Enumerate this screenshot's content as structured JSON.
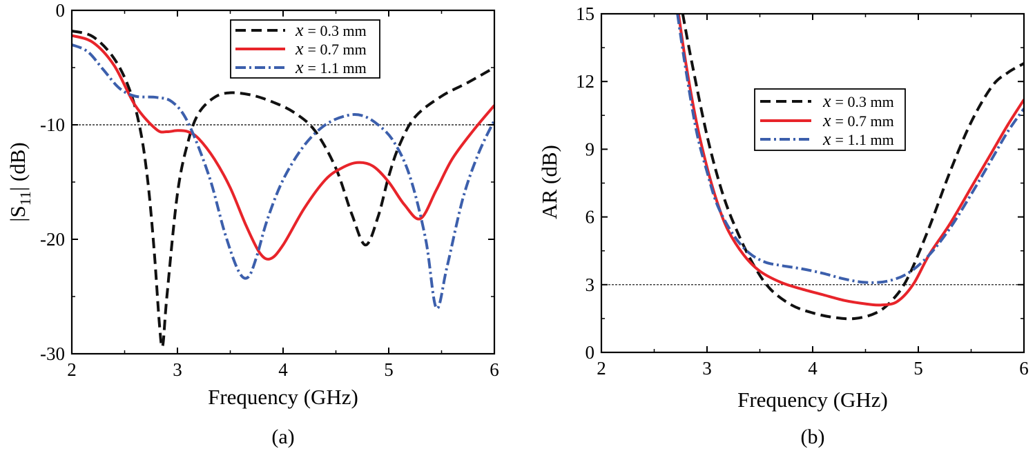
{
  "charts": [
    {
      "id": "a",
      "panel_label": "(a)",
      "xlabel": "Frequency (GHz)",
      "ylabel_main": "|S",
      "ylabel_sub": "11",
      "ylabel_tail": "| (dB)"
    },
    {
      "id": "b",
      "panel_label": "(b)",
      "xlabel": "Frequency (GHz)",
      "ylabel_main": "AR (dB)",
      "ylabel_sub": "",
      "ylabel_tail": ""
    }
  ],
  "chart_data": [
    {
      "type": "line",
      "panel": "(a)",
      "title": "",
      "xlabel": "Frequency (GHz)",
      "ylabel": "|S11| (dB)",
      "xlim": [
        2,
        6
      ],
      "ylim": [
        -30,
        0
      ],
      "xticks": [
        2,
        3,
        4,
        5,
        6
      ],
      "yticks": [
        -30,
        -20,
        -10,
        0
      ],
      "reference_line": {
        "y": -10,
        "style": "dotted"
      },
      "legend_position": "top-center",
      "series": [
        {
          "name": "x = 0.3 mm",
          "var": "x",
          "value_text": "= 0.3 mm",
          "color": "#111111",
          "dash": "dashed",
          "x": [
            2.0,
            2.2,
            2.4,
            2.55,
            2.65,
            2.72,
            2.78,
            2.83,
            2.86,
            2.9,
            3.0,
            3.1,
            3.2,
            3.35,
            3.5,
            3.7,
            3.9,
            4.1,
            4.3,
            4.5,
            4.65,
            4.78,
            4.9,
            5.0,
            5.1,
            5.25,
            5.5,
            5.75,
            6.0
          ],
          "y": [
            -1.8,
            -2.3,
            -4.2,
            -7.0,
            -10.5,
            -15.0,
            -21.0,
            -27.5,
            -29.3,
            -25.0,
            -16.0,
            -11.5,
            -9.0,
            -7.6,
            -7.2,
            -7.4,
            -8.0,
            -8.9,
            -10.5,
            -13.8,
            -17.8,
            -20.5,
            -18.0,
            -14.5,
            -11.8,
            -9.3,
            -7.5,
            -6.3,
            -5.0
          ]
        },
        {
          "name": "x = 0.7 mm",
          "var": "x",
          "value_text": "= 0.7 mm",
          "color": "#e8242a",
          "dash": "solid",
          "x": [
            2.0,
            2.2,
            2.4,
            2.6,
            2.8,
            2.9,
            3.0,
            3.1,
            3.2,
            3.35,
            3.5,
            3.65,
            3.78,
            3.88,
            4.0,
            4.2,
            4.4,
            4.55,
            4.7,
            4.85,
            5.0,
            5.15,
            5.3,
            5.45,
            5.6,
            5.8,
            6.0
          ],
          "y": [
            -2.2,
            -2.8,
            -4.8,
            -8.3,
            -10.4,
            -10.6,
            -10.5,
            -10.6,
            -11.2,
            -13.0,
            -15.5,
            -18.8,
            -21.2,
            -21.7,
            -20.5,
            -17.3,
            -14.8,
            -13.8,
            -13.3,
            -13.6,
            -15.0,
            -17.0,
            -18.2,
            -15.7,
            -13.0,
            -10.5,
            -8.3
          ]
        },
        {
          "name": "x = 1.1 mm",
          "var": "x",
          "value_text": "= 1.1 mm",
          "color": "#3c5fac",
          "dash": "dashdot",
          "x": [
            2.0,
            2.15,
            2.3,
            2.45,
            2.6,
            2.8,
            2.95,
            3.1,
            3.3,
            3.45,
            3.58,
            3.67,
            3.75,
            3.85,
            4.0,
            4.2,
            4.4,
            4.6,
            4.75,
            4.9,
            5.05,
            5.2,
            5.35,
            5.45,
            5.55,
            5.7,
            5.85,
            6.0
          ],
          "y": [
            -3.0,
            -3.6,
            -5.2,
            -6.8,
            -7.5,
            -7.6,
            -8.0,
            -9.8,
            -14.5,
            -19.5,
            -22.8,
            -23.3,
            -21.5,
            -18.3,
            -14.8,
            -11.8,
            -10.0,
            -9.2,
            -9.2,
            -10.0,
            -11.5,
            -14.5,
            -20.0,
            -26.0,
            -22.5,
            -16.5,
            -12.5,
            -9.6
          ]
        }
      ]
    },
    {
      "type": "line",
      "panel": "(b)",
      "title": "",
      "xlabel": "Frequency (GHz)",
      "ylabel": "AR (dB)",
      "xlim": [
        2,
        6
      ],
      "ylim": [
        0,
        15
      ],
      "xticks": [
        2,
        3,
        4,
        5,
        6
      ],
      "yticks": [
        0,
        3,
        6,
        9,
        12,
        15
      ],
      "reference_line": {
        "y": 3,
        "style": "dotted"
      },
      "legend_position": "upper-center",
      "series": [
        {
          "name": "x = 0.3 mm",
          "var": "x",
          "value_text": "= 0.3 mm",
          "color": "#111111",
          "dash": "dashed",
          "x": [
            2.77,
            2.85,
            3.0,
            3.15,
            3.3,
            3.45,
            3.6,
            3.8,
            4.0,
            4.2,
            4.4,
            4.6,
            4.75,
            4.9,
            5.1,
            5.3,
            5.5,
            5.7,
            5.85,
            6.0
          ],
          "y": [
            15.0,
            13.0,
            9.6,
            7.0,
            5.2,
            3.8,
            2.8,
            2.1,
            1.75,
            1.55,
            1.5,
            1.75,
            2.3,
            3.3,
            5.5,
            8.0,
            10.2,
            11.8,
            12.4,
            12.8
          ]
        },
        {
          "name": "x = 0.7 mm",
          "var": "x",
          "value_text": "= 0.7 mm",
          "color": "#e8242a",
          "dash": "solid",
          "x": [
            2.73,
            2.8,
            2.9,
            3.0,
            3.1,
            3.2,
            3.35,
            3.5,
            3.7,
            3.9,
            4.1,
            4.3,
            4.5,
            4.65,
            4.8,
            4.95,
            5.1,
            5.3,
            5.5,
            5.7,
            5.85,
            6.0
          ],
          "y": [
            15.0,
            12.8,
            10.2,
            8.2,
            6.6,
            5.4,
            4.3,
            3.6,
            3.1,
            2.8,
            2.55,
            2.3,
            2.15,
            2.1,
            2.25,
            3.0,
            4.3,
            5.7,
            7.3,
            8.9,
            10.1,
            11.2
          ]
        },
        {
          "name": "x = 1.1 mm",
          "var": "x",
          "value_text": "= 1.1 mm",
          "color": "#3c5fac",
          "dash": "dashdot",
          "x": [
            2.72,
            2.8,
            2.9,
            3.0,
            3.1,
            3.25,
            3.4,
            3.55,
            3.7,
            3.9,
            4.1,
            4.3,
            4.5,
            4.7,
            4.9,
            5.1,
            5.3,
            5.5,
            5.7,
            5.85,
            6.0
          ],
          "y": [
            15.0,
            12.5,
            9.8,
            8.0,
            6.5,
            5.2,
            4.4,
            4.0,
            3.85,
            3.7,
            3.5,
            3.25,
            3.1,
            3.15,
            3.5,
            4.3,
            5.5,
            7.0,
            8.6,
            9.8,
            10.8
          ]
        }
      ]
    }
  ]
}
